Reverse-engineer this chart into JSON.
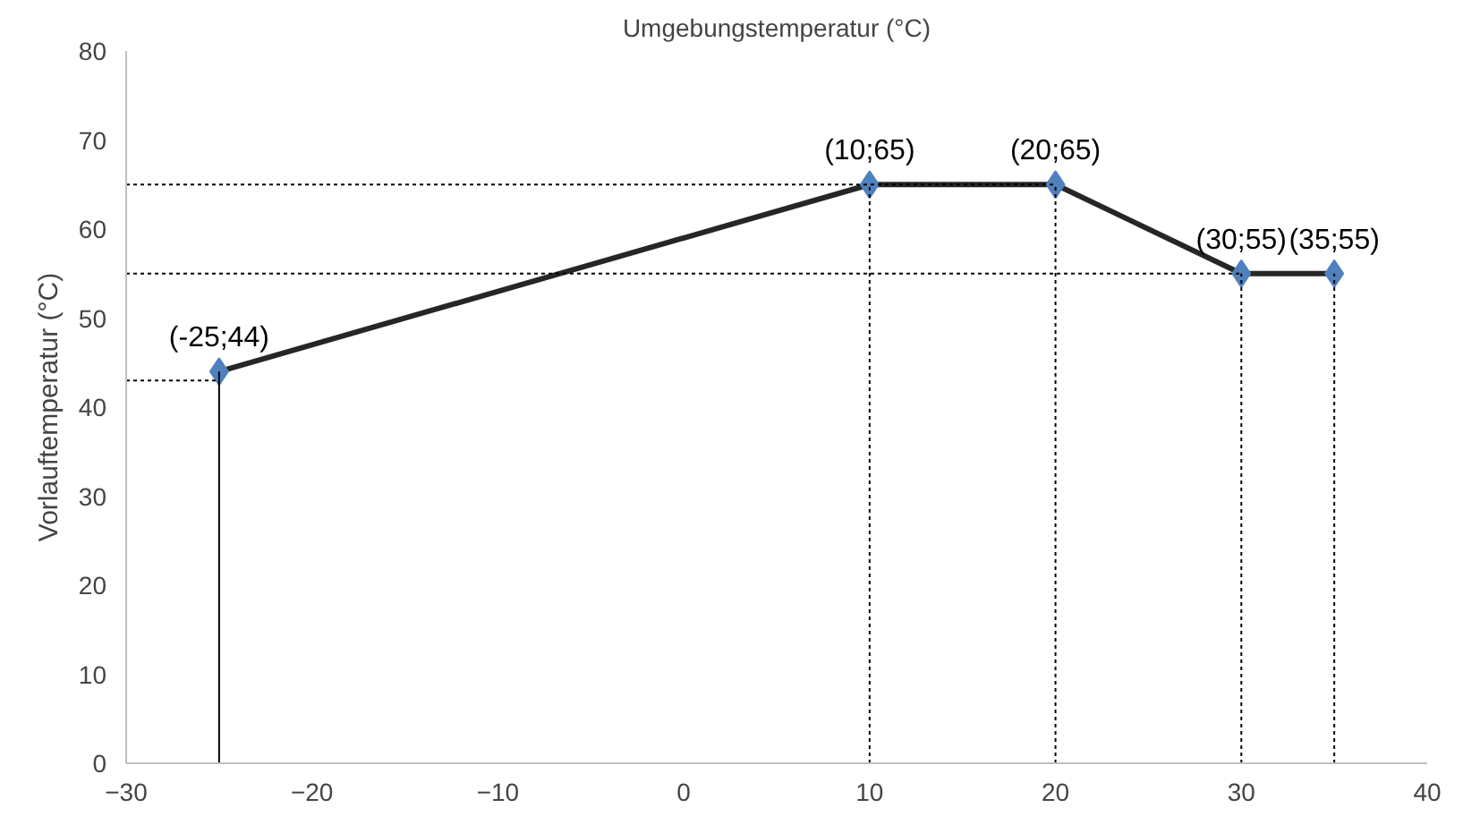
{
  "chart_data": {
    "type": "line",
    "xlabel": "Umgebungstemperatur (°C)",
    "ylabel": "Vorlauftemperatur (°C)",
    "xlim": [
      -30,
      40
    ],
    "xticks": [
      -30,
      -20,
      -10,
      0,
      10,
      20,
      30,
      40
    ],
    "ylim": [
      0,
      80
    ],
    "yticks": [
      0,
      10,
      20,
      30,
      40,
      50,
      60,
      70,
      80
    ],
    "grid": false,
    "series": [
      {
        "x": [
          -25,
          10,
          20,
          30,
          35
        ],
        "values": [
          44,
          65,
          65,
          55,
          55
        ],
        "color": "#262626",
        "colors": [
          "#4f81bd",
          "#4f81bd",
          "#4f81bd",
          "#4f81bd",
          "#4f81bd"
        ],
        "marker": "diamond",
        "line_style": "solid",
        "value_labels": [
          "(-25;44)",
          "(10;65)",
          "(20;65)",
          "(30;55)",
          "(35;55)"
        ]
      },
      {
        "x": [
          -25,
          -25
        ],
        "values": [
          0,
          44
        ],
        "color": "#000000",
        "marker": "none",
        "line_style": "solid"
      },
      {
        "x": [
          -30,
          20
        ],
        "values": [
          65,
          65
        ],
        "color": "#000000",
        "marker": "none",
        "line_style": "dotted"
      },
      {
        "x": [
          -30,
          30
        ],
        "values": [
          55,
          55
        ],
        "color": "#000000",
        "marker": "none",
        "line_style": "dotted"
      },
      {
        "x": [
          -30,
          -25
        ],
        "values": [
          43,
          43
        ],
        "color": "#000000",
        "marker": "none",
        "line_style": "dotted"
      },
      {
        "x": [
          10,
          10
        ],
        "values": [
          0,
          65
        ],
        "color": "#000000",
        "marker": "none",
        "line_style": "dotted"
      },
      {
        "x": [
          20,
          20
        ],
        "values": [
          0,
          65
        ],
        "color": "#000000",
        "marker": "none",
        "line_style": "dotted"
      },
      {
        "x": [
          30,
          30
        ],
        "values": [
          0,
          55
        ],
        "color": "#000000",
        "marker": "none",
        "line_style": "dotted"
      },
      {
        "x": [
          35,
          35
        ],
        "values": [
          0,
          55
        ],
        "color": "#000000",
        "marker": "none",
        "line_style": "dotted"
      }
    ]
  }
}
